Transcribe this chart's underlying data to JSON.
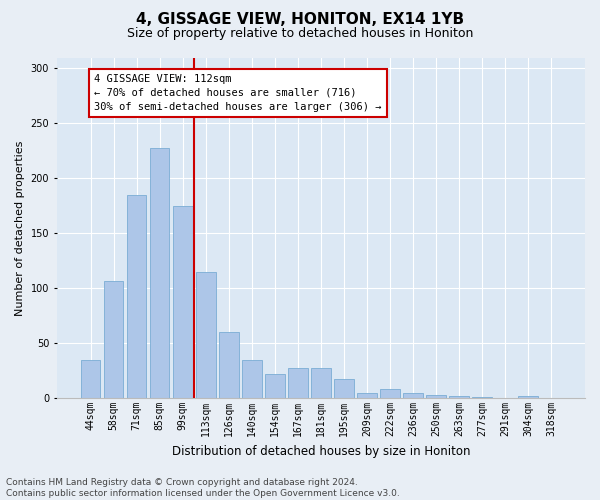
{
  "title": "4, GISSAGE VIEW, HONITON, EX14 1YB",
  "subtitle": "Size of property relative to detached houses in Honiton",
  "xlabel": "Distribution of detached houses by size in Honiton",
  "ylabel": "Number of detached properties",
  "categories": [
    "44sqm",
    "58sqm",
    "71sqm",
    "85sqm",
    "99sqm",
    "113sqm",
    "126sqm",
    "140sqm",
    "154sqm",
    "167sqm",
    "181sqm",
    "195sqm",
    "209sqm",
    "222sqm",
    "236sqm",
    "250sqm",
    "263sqm",
    "277sqm",
    "291sqm",
    "304sqm",
    "318sqm"
  ],
  "values": [
    35,
    107,
    185,
    228,
    175,
    115,
    60,
    35,
    22,
    27,
    27,
    17,
    5,
    8,
    5,
    3,
    2,
    1,
    0,
    2,
    0
  ],
  "bar_color": "#adc6e8",
  "bar_edge_color": "#7aadd4",
  "vline_color": "#cc0000",
  "annotation_text": "4 GISSAGE VIEW: 112sqm\n← 70% of detached houses are smaller (716)\n30% of semi-detached houses are larger (306) →",
  "annotation_box_color": "#ffffff",
  "annotation_box_edge": "#cc0000",
  "footer": "Contains HM Land Registry data © Crown copyright and database right 2024.\nContains public sector information licensed under the Open Government Licence v3.0.",
  "ylim": [
    0,
    310
  ],
  "bg_color": "#e8eef5",
  "plot_bg_color": "#dce8f4",
  "title_fontsize": 11,
  "subtitle_fontsize": 9,
  "tick_fontsize": 7,
  "ylabel_fontsize": 8,
  "xlabel_fontsize": 8.5,
  "footer_fontsize": 6.5,
  "annotation_fontsize": 7.5
}
